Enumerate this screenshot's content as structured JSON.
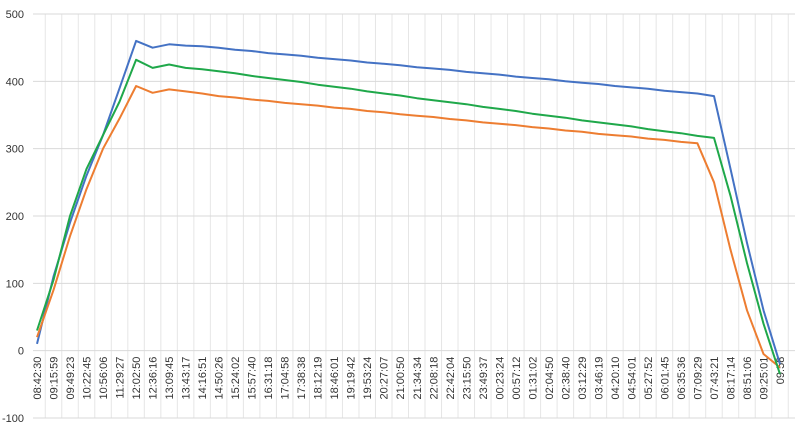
{
  "chart_data": {
    "type": "line",
    "categories": [
      "08:42:30",
      "09:15:59",
      "09:49:23",
      "10:22:45",
      "10:56:06",
      "11:29:27",
      "12:02:50",
      "12:36:16",
      "13:09:45",
      "13:43:17",
      "14:16:51",
      "14:50:26",
      "15:24:02",
      "15:57:40",
      "16:31:18",
      "17:04:58",
      "17:38:38",
      "18:12:19",
      "18:46:01",
      "19:19:42",
      "19:53:24",
      "20:27:07",
      "21:00:50",
      "21:34:34",
      "22:08:18",
      "22:42:04",
      "23:15:50",
      "23:49:37",
      "00:23:24",
      "00:57:12",
      "01:31:02",
      "02:04:50",
      "02:38:40",
      "03:12:29",
      "03:46:19",
      "04:20:10",
      "04:54:01",
      "05:27:52",
      "06:01:45",
      "06:35:36",
      "07:09:29",
      "07:43:21",
      "08:17:14",
      "08:51:06",
      "09:25:01",
      "09:58"
    ],
    "series": [
      {
        "color": "#4472c4",
        "values": [
          10,
          110,
          190,
          260,
          320,
          390,
          460,
          450,
          455,
          453,
          452,
          450,
          447,
          445,
          442,
          440,
          438,
          435,
          433,
          431,
          428,
          426,
          424,
          421,
          419,
          417,
          414,
          412,
          410,
          407,
          405,
          403,
          400,
          398,
          396,
          393,
          391,
          389,
          386,
          384,
          382,
          378,
          270,
          160,
          60,
          -20
        ]
      },
      {
        "color": "#ed7d31",
        "values": [
          20,
          90,
          170,
          240,
          300,
          345,
          393,
          383,
          388,
          385,
          382,
          378,
          376,
          373,
          371,
          368,
          366,
          364,
          361,
          359,
          356,
          354,
          351,
          349,
          347,
          344,
          342,
          339,
          337,
          335,
          332,
          330,
          327,
          325,
          322,
          320,
          318,
          315,
          313,
          310,
          308,
          250,
          150,
          60,
          -5,
          -25
        ]
      },
      {
        "color": "#1fa84a",
        "values": [
          30,
          105,
          200,
          270,
          320,
          370,
          432,
          420,
          425,
          420,
          418,
          415,
          412,
          408,
          405,
          402,
          399,
          395,
          392,
          389,
          385,
          382,
          379,
          375,
          372,
          369,
          366,
          362,
          359,
          356,
          352,
          349,
          346,
          342,
          339,
          336,
          333,
          329,
          326,
          323,
          319,
          316,
          230,
          130,
          40,
          -35
        ]
      }
    ],
    "ylim": [
      -100,
      500
    ],
    "yticks": [
      -100,
      0,
      100,
      200,
      300,
      400,
      500
    ],
    "grid": true
  }
}
